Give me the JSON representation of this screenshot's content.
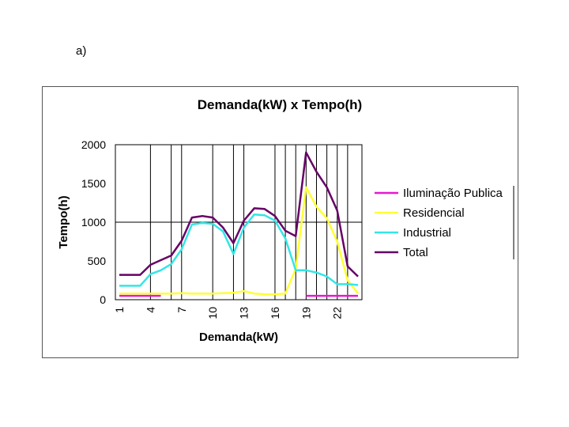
{
  "figure_label": "a)",
  "chart_data": {
    "type": "line",
    "title": "Demanda(kW) x Tempo(h)",
    "xlabel": "Demanda(kW)",
    "ylabel": "Tempo(h)",
    "ylim": [
      0,
      2000
    ],
    "yticks": [
      0,
      500,
      1000,
      1500,
      2000
    ],
    "x": [
      1,
      2,
      3,
      4,
      5,
      6,
      7,
      8,
      9,
      10,
      11,
      12,
      13,
      14,
      15,
      16,
      17,
      18,
      19,
      20,
      21,
      22,
      23,
      24
    ],
    "xtick_labels": [
      "1",
      "4",
      "7",
      "10",
      "13",
      "16",
      "19",
      "22"
    ],
    "xtick_values": [
      1,
      4,
      7,
      10,
      13,
      16,
      19,
      22
    ],
    "legend_position": "right",
    "series": [
      {
        "name": "Iluminação Publica",
        "color": "#e619d0",
        "values": [
          50,
          50,
          50,
          50,
          50,
          null,
          null,
          null,
          null,
          null,
          null,
          null,
          null,
          null,
          null,
          null,
          null,
          null,
          50,
          50,
          50,
          50,
          50,
          50
        ]
      },
      {
        "name": "Residencial",
        "color": "#ffff33",
        "values": [
          80,
          80,
          80,
          80,
          80,
          80,
          85,
          80,
          80,
          80,
          85,
          90,
          110,
          80,
          70,
          70,
          80,
          400,
          1450,
          1200,
          1050,
          750,
          250,
          80
        ]
      },
      {
        "name": "Industrial",
        "color": "#33e6e6",
        "values": [
          180,
          180,
          180,
          330,
          380,
          460,
          650,
          970,
          990,
          980,
          880,
          590,
          930,
          1100,
          1090,
          1020,
          790,
          380,
          380,
          350,
          300,
          200,
          200,
          190
        ]
      },
      {
        "name": "Total",
        "color": "#660066",
        "values": [
          320,
          320,
          320,
          450,
          510,
          570,
          760,
          1060,
          1080,
          1060,
          930,
          730,
          1020,
          1180,
          1170,
          1080,
          890,
          820,
          1900,
          1650,
          1450,
          1150,
          430,
          300
        ]
      }
    ]
  }
}
